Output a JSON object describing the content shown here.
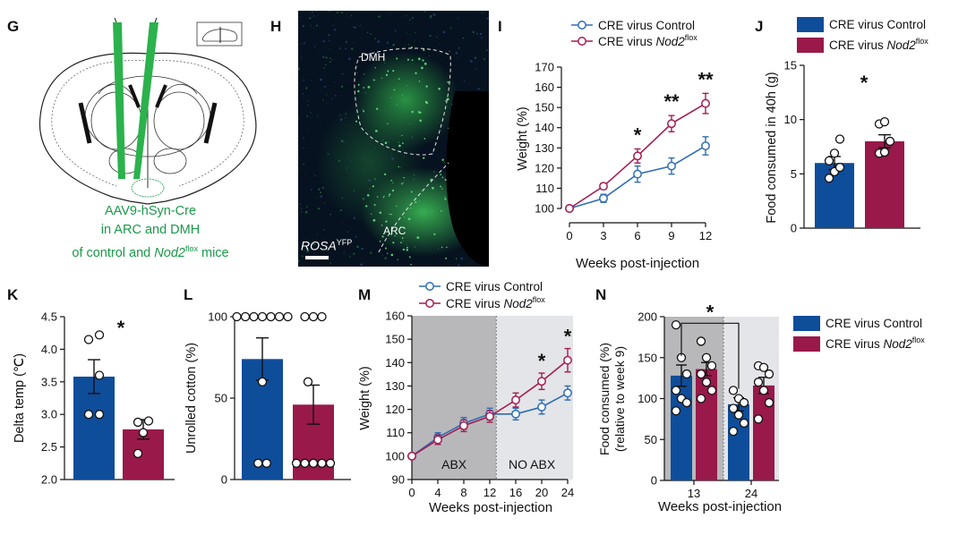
{
  "panels": {
    "G": {
      "letter": "G",
      "caption": [
        "AAV9-hSyn-Cre",
        "in ARC and DMH"
      ],
      "caption3_pre": "of control and ",
      "caption3_gene": "Nod2",
      "caption3_sup": "flox",
      "caption3_post": " mice",
      "colors": {
        "caption": "#1a9a48",
        "needle": "#2bb24c"
      }
    },
    "H": {
      "letter": "H",
      "label_dmh": "DMH",
      "label_arc": "ARC",
      "stain": "ROSA",
      "stain_sup": "YFP"
    },
    "I": {
      "letter": "I"
    },
    "J": {
      "letter": "J"
    },
    "K": {
      "letter": "K"
    },
    "L": {
      "letter": "L"
    },
    "M": {
      "letter": "M",
      "region_abx": "ABX",
      "region_noabx": "NO ABX"
    },
    "N": {
      "letter": "N"
    }
  },
  "colors": {
    "control": "#2e6db3",
    "nod2": "#a41c52",
    "control_bar": "#0e4d9a",
    "nod2_bar": "#98194a"
  },
  "legend": {
    "control": "CRE virus Control",
    "nod2_pre": "CRE virus ",
    "nod2_gene": "Nod2",
    "nod2_sup": "flox"
  },
  "chart_data": [
    {
      "id": "I",
      "type": "line",
      "xlabel": "Weeks post-injection",
      "ylabel": "Weight (%)",
      "xticks": [
        0,
        3,
        6,
        9,
        12
      ],
      "yticks": [
        100,
        110,
        120,
        130,
        140,
        150,
        160,
        170
      ],
      "xlim": [
        0,
        12
      ],
      "ylim": [
        100,
        170
      ],
      "legend": "top-left",
      "series": [
        {
          "name": "CRE virus Control",
          "x": [
            0,
            3,
            6,
            9,
            12
          ],
          "y": [
            100,
            105,
            117,
            121,
            131
          ],
          "err": [
            1,
            2,
            4,
            4,
            4.5
          ]
        },
        {
          "name": "CRE virus Nod2flox",
          "x": [
            0,
            3,
            6,
            9,
            12
          ],
          "y": [
            100,
            111,
            126,
            142,
            152
          ],
          "err": [
            1,
            1.5,
            3.5,
            4,
            5
          ]
        }
      ],
      "annotations": [
        {
          "x": 6,
          "text": "*"
        },
        {
          "x": 9,
          "text": "**"
        },
        {
          "x": 12,
          "text": "**"
        }
      ]
    },
    {
      "id": "J",
      "type": "bar",
      "ylabel": "Food consumed in 40h (g)",
      "yticks": [
        0,
        5,
        10,
        15
      ],
      "ylim": [
        0,
        15
      ],
      "categories": [
        "CRE virus Control",
        "CRE virus Nod2flox"
      ],
      "values": [
        6,
        8
      ],
      "err": [
        0.6,
        0.6
      ],
      "points": [
        [
          4.6,
          5.2,
          5.6,
          6.2,
          6.9,
          8.2
        ],
        [
          6.9,
          7.0,
          8.0,
          9.6,
          9.8
        ]
      ],
      "annotations": [
        {
          "text": "*"
        }
      ],
      "legend": "top-right"
    },
    {
      "id": "K",
      "type": "bar",
      "ylabel": "Delta temp (℃)",
      "yticks": [
        2.0,
        2.5,
        3.0,
        3.5,
        4.0,
        4.5
      ],
      "ylim": [
        2.0,
        4.5
      ],
      "categories": [
        "CRE virus Control",
        "CRE virus Nod2flox"
      ],
      "values": [
        3.58,
        2.77
      ],
      "err": [
        0.26,
        0.15
      ],
      "points": [
        [
          3.0,
          3.0,
          3.6,
          4.15,
          4.22
        ],
        [
          2.4,
          2.72,
          2.88,
          2.9
        ]
      ],
      "annotations": [
        {
          "text": "*"
        }
      ]
    },
    {
      "id": "L",
      "type": "bar",
      "ylabel": "Unrolled cotton (%)",
      "yticks": [
        0,
        50,
        100
      ],
      "ylim": [
        0,
        100
      ],
      "categories": [
        "CRE virus Control",
        "CRE virus Nod2flox"
      ],
      "values": [
        74,
        46
      ],
      "err": [
        13,
        12
      ],
      "points": [
        [
          100,
          100,
          100,
          100,
          100,
          100,
          100,
          60,
          10,
          10
        ],
        [
          100,
          100,
          100,
          60,
          10,
          10,
          10,
          10,
          10
        ]
      ]
    },
    {
      "id": "M",
      "type": "line",
      "xlabel": "Weeks post-injection",
      "ylabel": "Weight (%)",
      "xticks": [
        0,
        4,
        8,
        12,
        16,
        20,
        24
      ],
      "yticks": [
        90,
        100,
        110,
        120,
        130,
        140,
        150,
        160
      ],
      "xlim": [
        0,
        24
      ],
      "ylim": [
        90,
        160
      ],
      "legend": "top",
      "series": [
        {
          "name": "CRE virus Control",
          "x": [
            0,
            4,
            8,
            12,
            16,
            20,
            24
          ],
          "y": [
            100,
            108,
            114,
            118,
            118,
            121,
            127
          ],
          "err": [
            1,
            2,
            2.5,
            2.5,
            2.5,
            3,
            3
          ]
        },
        {
          "name": "CRE virus Nod2flox",
          "x": [
            0,
            4,
            8,
            12,
            16,
            20,
            24
          ],
          "y": [
            100,
            107,
            113,
            117,
            124,
            132,
            141
          ],
          "err": [
            1,
            2,
            2.5,
            2.5,
            3,
            3.5,
            5
          ]
        }
      ],
      "annotations": [
        {
          "x": 20,
          "text": "*"
        },
        {
          "x": 24,
          "text": "*"
        }
      ]
    },
    {
      "id": "N",
      "type": "bar",
      "xlabel": "Weeks post-injection",
      "ylabel_line1": "Food consumed (%)",
      "ylabel_line2": "(relative to week 9)",
      "yticks": [
        0,
        50,
        100,
        150,
        200
      ],
      "ylim": [
        0,
        200
      ],
      "categories": [
        "13",
        "24"
      ],
      "series": [
        {
          "name": "CRE virus Control",
          "values": [
            128,
            93
          ],
          "err": [
            13,
            8
          ],
          "points": [
            [
              190,
              150,
              130,
              110,
              100,
              95,
              85
            ],
            [
              110,
              100,
              95,
              88,
              80,
              70,
              60
            ]
          ]
        },
        {
          "name": "CRE virus Nod2flox",
          "values": [
            136,
            116
          ],
          "err": [
            8,
            10
          ],
          "points": [
            [
              170,
              150,
              140,
              130,
              120,
              110,
              100
            ],
            [
              140,
              138,
              130,
              120,
              110,
              95,
              75
            ]
          ]
        }
      ],
      "annotations": [
        {
          "text": "*"
        }
      ],
      "legend": "right"
    }
  ]
}
